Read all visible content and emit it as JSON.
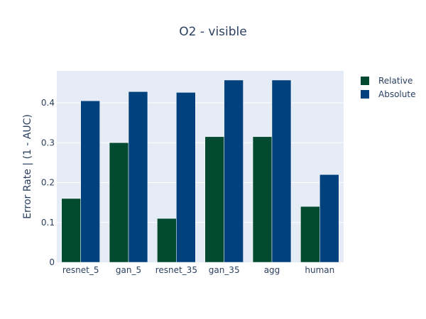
{
  "chart_data": {
    "type": "bar",
    "title": "O2 - visible",
    "xlabel": "",
    "ylabel": "Error Rate | (1 - AUC)",
    "categories": [
      "resnet_5",
      "gan_5",
      "resnet_35",
      "gan_35",
      "agg",
      "human"
    ],
    "series": [
      {
        "name": "Relative",
        "values": [
          0.16,
          0.3,
          0.11,
          0.315,
          0.315,
          0.14
        ],
        "color": "#024b30"
      },
      {
        "name": "Absolute",
        "values": [
          0.405,
          0.428,
          0.426,
          0.457,
          0.457,
          0.22
        ],
        "color": "#01417e"
      }
    ],
    "ylim": [
      0,
      0.48
    ],
    "yticks": [
      0,
      0.1,
      0.2,
      0.3,
      0.4
    ],
    "ytick_labels": [
      "0",
      "0.1",
      "0.2",
      "0.3",
      "0.4"
    ],
    "grid": true,
    "legend_position": "top-right",
    "plot_background": "#e5ecf6"
  }
}
